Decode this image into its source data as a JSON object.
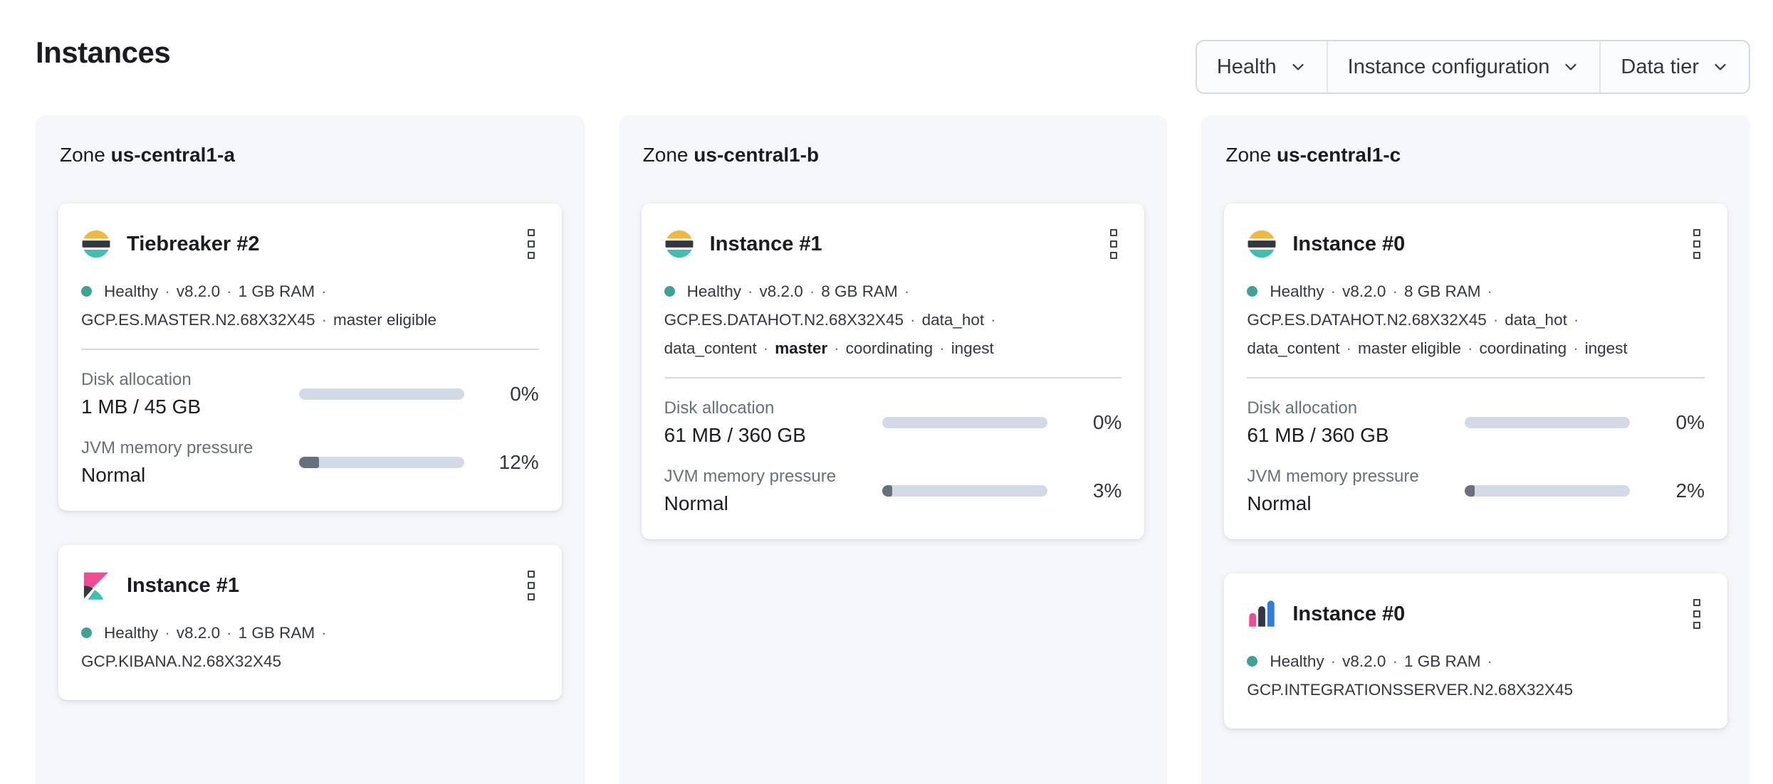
{
  "page": {
    "title": "Instances"
  },
  "zone_label_prefix": "Zone",
  "filters": [
    {
      "label": "Health"
    },
    {
      "label": "Instance configuration"
    },
    {
      "label": "Data tier"
    }
  ],
  "icons": {
    "filter_chevron": "chevron-down-icon",
    "card_menu": "boxes-vertical-icon",
    "health": "health-dot"
  },
  "colors": {
    "health_dot": "#3EA294",
    "panel_bg": "#F5F7FA",
    "bar_track": "#D3DAE6",
    "bar_fill": "#69707D",
    "es_yellow": "#F0B842",
    "es_teal": "#40BEB0",
    "logo_dark": "#343741",
    "kibana_pink": "#EE4C93",
    "blue": "#2F7DE1"
  },
  "zones": [
    {
      "name": "us-central1-a",
      "instances": [
        {
          "icon": "elasticsearch",
          "title": "Tiebreaker #2",
          "status_lines": [
            [
              "Healthy",
              "v8.2.0",
              "1 GB RAM"
            ],
            [
              "GCP.ES.MASTER.N2.68X32X45",
              "master eligible"
            ]
          ],
          "metrics": [
            {
              "label": "Disk allocation",
              "value": "1 MB / 45 GB",
              "percent": "0%",
              "fill_percent": 0
            },
            {
              "label": "JVM memory pressure",
              "value": "Normal",
              "percent": "12%",
              "fill_percent": 12
            }
          ]
        },
        {
          "icon": "kibana",
          "title": "Instance #1",
          "status_lines": [
            [
              "Healthy",
              "v8.2.0",
              "1 GB RAM"
            ],
            [
              "GCP.KIBANA.N2.68X32X45"
            ]
          ],
          "metrics": []
        }
      ]
    },
    {
      "name": "us-central1-b",
      "instances": [
        {
          "icon": "elasticsearch",
          "title": "Instance #1",
          "status_lines": [
            [
              "Healthy",
              "v8.2.0",
              "8 GB RAM"
            ],
            [
              "GCP.ES.DATAHOT.N2.68X32X45",
              "data_hot"
            ],
            [
              "data_content",
              {
                "text": "master",
                "bold": true
              },
              "coordinating",
              "ingest"
            ]
          ],
          "metrics": [
            {
              "label": "Disk allocation",
              "value": "61 MB / 360 GB",
              "percent": "0%",
              "fill_percent": 0
            },
            {
              "label": "JVM memory pressure",
              "value": "Normal",
              "percent": "3%",
              "fill_percent": 3
            }
          ]
        }
      ]
    },
    {
      "name": "us-central1-c",
      "instances": [
        {
          "icon": "elasticsearch",
          "title": "Instance #0",
          "status_lines": [
            [
              "Healthy",
              "v8.2.0",
              "8 GB RAM"
            ],
            [
              "GCP.ES.DATAHOT.N2.68X32X45",
              "data_hot"
            ],
            [
              "data_content",
              "master eligible",
              "coordinating",
              "ingest"
            ]
          ],
          "metrics": [
            {
              "label": "Disk allocation",
              "value": "61 MB / 360 GB",
              "percent": "0%",
              "fill_percent": 0
            },
            {
              "label": "JVM memory pressure",
              "value": "Normal",
              "percent": "2%",
              "fill_percent": 2
            }
          ]
        },
        {
          "icon": "integrations-server",
          "title": "Instance #0",
          "status_lines": [
            [
              "Healthy",
              "v8.2.0",
              "1 GB RAM"
            ],
            [
              "GCP.INTEGRATIONSSERVER.N2.68X32X45"
            ]
          ],
          "metrics": []
        }
      ]
    }
  ]
}
